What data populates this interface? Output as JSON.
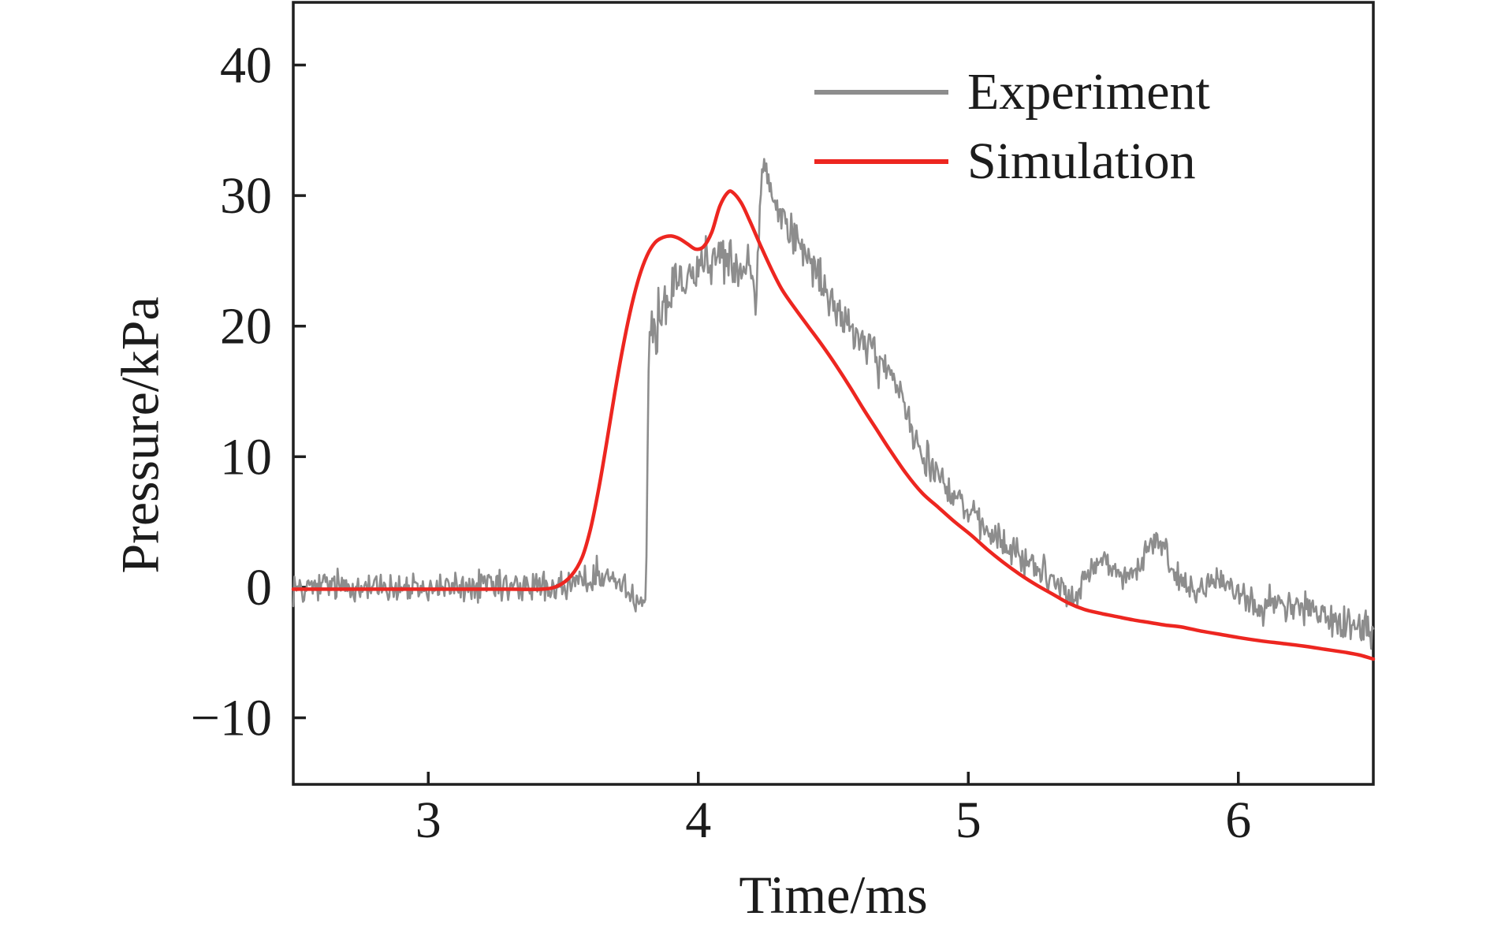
{
  "figure": {
    "background": "#ffffff",
    "axis_color": "#1f1f1f",
    "text_color": "#1c1c1c"
  },
  "chart_data": {
    "type": "line",
    "title": "",
    "xlabel": "Time/ms",
    "ylabel": "Pressure/kPa",
    "xlim": [
      2.5,
      6.5
    ],
    "ylim": [
      -15.1,
      44.8
    ],
    "grid": false,
    "legend_position": "upper right",
    "x_ticks": [
      {
        "value": 3,
        "label": "3"
      },
      {
        "value": 4,
        "label": "4"
      },
      {
        "value": 5,
        "label": "5"
      },
      {
        "value": 6,
        "label": "6"
      }
    ],
    "y_ticks": [
      {
        "value": -10,
        "label": "−10"
      },
      {
        "value": 0,
        "label": "0"
      },
      {
        "value": 10,
        "label": "10"
      },
      {
        "value": 20,
        "label": "20"
      },
      {
        "value": 30,
        "label": "30"
      },
      {
        "value": 40,
        "label": "40"
      }
    ],
    "series": [
      {
        "name": "Experiment",
        "color": "#8d8d8d",
        "style": "noisy",
        "line_width": 2.6,
        "noise_seed": 12345,
        "noise_step_ms": 0.004,
        "base_points": [
          [
            2.5,
            0.0,
            1.0
          ],
          [
            2.7,
            0.1,
            1.0
          ],
          [
            2.9,
            -0.1,
            1.0
          ],
          [
            3.1,
            0.0,
            1.0
          ],
          [
            3.3,
            -0.1,
            1.0
          ],
          [
            3.45,
            0.0,
            1.0
          ],
          [
            3.55,
            0.3,
            0.9
          ],
          [
            3.62,
            0.8,
            0.8
          ],
          [
            3.68,
            0.7,
            0.8
          ],
          [
            3.73,
            0.0,
            0.8
          ],
          [
            3.77,
            -0.8,
            0.7
          ],
          [
            3.8,
            -1.1,
            0.5
          ],
          [
            3.806,
            -0.5,
            0.4
          ],
          [
            3.812,
            10.0,
            1.5
          ],
          [
            3.818,
            18.5,
            1.8
          ],
          [
            3.83,
            20.3,
            1.8
          ],
          [
            3.842,
            18.8,
            1.6
          ],
          [
            3.855,
            20.5,
            1.6
          ],
          [
            3.87,
            21.8,
            1.8
          ],
          [
            3.89,
            22.6,
            1.8
          ],
          [
            3.91,
            23.4,
            1.7
          ],
          [
            3.94,
            24.3,
            1.5
          ],
          [
            3.97,
            23.9,
            1.5
          ],
          [
            4.0,
            24.6,
            1.4
          ],
          [
            4.04,
            25.0,
            1.4
          ],
          [
            4.08,
            25.2,
            1.3
          ],
          [
            4.12,
            24.6,
            1.3
          ],
          [
            4.16,
            24.3,
            1.3
          ],
          [
            4.19,
            24.6,
            1.2
          ],
          [
            4.208,
            22.6,
            0.9
          ],
          [
            4.215,
            20.8,
            0.8
          ],
          [
            4.222,
            26.0,
            1.0
          ],
          [
            4.232,
            31.0,
            1.0
          ],
          [
            4.245,
            33.0,
            0.8
          ],
          [
            4.255,
            32.0,
            0.9
          ],
          [
            4.27,
            30.6,
            1.1
          ],
          [
            4.29,
            29.3,
            1.1
          ],
          [
            4.32,
            28.2,
            1.2
          ],
          [
            4.36,
            26.6,
            1.2
          ],
          [
            4.4,
            25.3,
            1.2
          ],
          [
            4.44,
            23.9,
            1.2
          ],
          [
            4.48,
            22.4,
            1.2
          ],
          [
            4.53,
            20.8,
            1.2
          ],
          [
            4.58,
            19.5,
            1.2
          ],
          [
            4.63,
            18.2,
            1.2
          ],
          [
            4.68,
            17.0,
            1.2
          ],
          [
            4.72,
            16.2,
            1.1
          ],
          [
            4.75,
            15.0,
            1.1
          ],
          [
            4.78,
            13.0,
            1.1
          ],
          [
            4.81,
            11.0,
            1.1
          ],
          [
            4.85,
            9.8,
            1.1
          ],
          [
            4.9,
            8.4,
            1.1
          ],
          [
            4.95,
            7.0,
            1.0
          ],
          [
            5.0,
            5.8,
            1.0
          ],
          [
            5.05,
            4.6,
            1.0
          ],
          [
            5.1,
            3.8,
            1.0
          ],
          [
            5.16,
            2.7,
            1.0
          ],
          [
            5.22,
            1.9,
            1.0
          ],
          [
            5.28,
            1.3,
            1.0
          ],
          [
            5.33,
            0.6,
            0.9
          ],
          [
            5.37,
            -0.7,
            0.8
          ],
          [
            5.4,
            -1.0,
            0.8
          ],
          [
            5.44,
            1.2,
            0.9
          ],
          [
            5.47,
            2.2,
            0.9
          ],
          [
            5.51,
            1.7,
            0.9
          ],
          [
            5.55,
            1.0,
            0.9
          ],
          [
            5.59,
            0.8,
            0.9
          ],
          [
            5.63,
            1.4,
            0.9
          ],
          [
            5.67,
            3.0,
            0.9
          ],
          [
            5.7,
            3.6,
            0.8
          ],
          [
            5.73,
            2.6,
            0.9
          ],
          [
            5.77,
            1.0,
            0.9
          ],
          [
            5.82,
            -0.2,
            0.9
          ],
          [
            5.87,
            0.3,
            0.9
          ],
          [
            5.92,
            0.8,
            0.9
          ],
          [
            5.97,
            0.1,
            0.9
          ],
          [
            6.03,
            -0.7,
            0.9
          ],
          [
            6.1,
            -1.0,
            1.0
          ],
          [
            6.17,
            -1.3,
            1.0
          ],
          [
            6.24,
            -1.6,
            1.1
          ],
          [
            6.31,
            -2.2,
            1.1
          ],
          [
            6.38,
            -2.7,
            1.2
          ],
          [
            6.44,
            -3.1,
            1.2
          ],
          [
            6.5,
            -3.4,
            1.2
          ]
        ]
      },
      {
        "name": "Simulation",
        "color": "#ed2620",
        "style": "smooth",
        "line_width": 4.5,
        "points": [
          [
            2.5,
            -0.15
          ],
          [
            2.8,
            -0.15
          ],
          [
            3.1,
            -0.15
          ],
          [
            3.3,
            -0.15
          ],
          [
            3.42,
            -0.15
          ],
          [
            3.48,
            0.1
          ],
          [
            3.53,
            0.9
          ],
          [
            3.57,
            2.3
          ],
          [
            3.6,
            4.4
          ],
          [
            3.63,
            7.4
          ],
          [
            3.66,
            11.0
          ],
          [
            3.69,
            14.8
          ],
          [
            3.72,
            18.3
          ],
          [
            3.75,
            21.3
          ],
          [
            3.78,
            23.7
          ],
          [
            3.81,
            25.4
          ],
          [
            3.84,
            26.4
          ],
          [
            3.87,
            26.8
          ],
          [
            3.9,
            26.9
          ],
          [
            3.93,
            26.7
          ],
          [
            3.96,
            26.3
          ],
          [
            3.99,
            25.9
          ],
          [
            4.02,
            26.1
          ],
          [
            4.05,
            27.2
          ],
          [
            4.08,
            29.2
          ],
          [
            4.11,
            30.25
          ],
          [
            4.13,
            30.2
          ],
          [
            4.16,
            29.4
          ],
          [
            4.19,
            28.1
          ],
          [
            4.23,
            26.2
          ],
          [
            4.27,
            24.4
          ],
          [
            4.31,
            22.8
          ],
          [
            4.36,
            21.3
          ],
          [
            4.41,
            19.9
          ],
          [
            4.46,
            18.5
          ],
          [
            4.51,
            17.0
          ],
          [
            4.56,
            15.4
          ],
          [
            4.61,
            13.7
          ],
          [
            4.66,
            12.1
          ],
          [
            4.71,
            10.5
          ],
          [
            4.77,
            8.7
          ],
          [
            4.83,
            7.2
          ],
          [
            4.89,
            6.1
          ],
          [
            4.95,
            5.0
          ],
          [
            5.01,
            4.0
          ],
          [
            5.07,
            2.9
          ],
          [
            5.13,
            1.9
          ],
          [
            5.19,
            1.0
          ],
          [
            5.25,
            0.2
          ],
          [
            5.31,
            -0.5
          ],
          [
            5.37,
            -1.2
          ],
          [
            5.43,
            -1.7
          ],
          [
            5.49,
            -2.0
          ],
          [
            5.55,
            -2.25
          ],
          [
            5.61,
            -2.5
          ],
          [
            5.67,
            -2.7
          ],
          [
            5.73,
            -2.9
          ],
          [
            5.79,
            -3.05
          ],
          [
            5.86,
            -3.35
          ],
          [
            5.93,
            -3.6
          ],
          [
            6.0,
            -3.85
          ],
          [
            6.08,
            -4.1
          ],
          [
            6.16,
            -4.3
          ],
          [
            6.24,
            -4.5
          ],
          [
            6.32,
            -4.75
          ],
          [
            6.4,
            -5.0
          ],
          [
            6.45,
            -5.2
          ],
          [
            6.5,
            -5.5
          ]
        ]
      }
    ]
  },
  "legend": {
    "items": [
      {
        "label": "Experiment",
        "color": "#8d8d8d"
      },
      {
        "label": "Simulation",
        "color": "#ed2620"
      }
    ]
  }
}
